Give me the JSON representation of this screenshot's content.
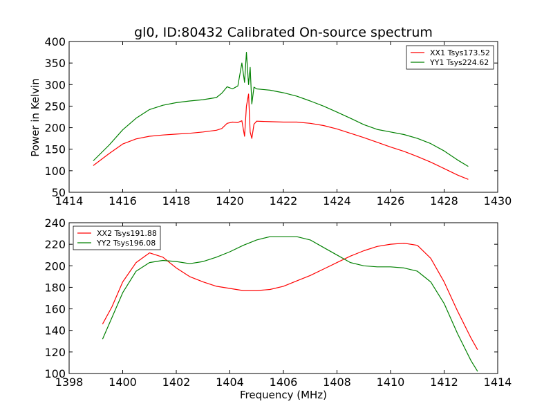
{
  "figure": {
    "title": "gl0, ID:80432 Calibrated On-source spectrum",
    "ylabel_top": "Power in Kelvin",
    "xlabel_bottom": "Frequency (MHz)"
  },
  "chart_data": [
    {
      "type": "line",
      "title": "gl0, ID:80432 Calibrated On-source spectrum",
      "xlabel": "",
      "ylabel": "Power in Kelvin",
      "xlim": [
        1414,
        1430
      ],
      "ylim": [
        50,
        400
      ],
      "xticks": [
        "1414",
        "1416",
        "1418",
        "1420",
        "1422",
        "1424",
        "1426",
        "1428",
        "1430"
      ],
      "yticks": [
        "50",
        "100",
        "150",
        "200",
        "250",
        "300",
        "350",
        "400"
      ],
      "grid": false,
      "legend_position": "upper right",
      "series": [
        {
          "name": "XX1 Tsys173.52",
          "color": "#ff0000",
          "x": [
            1414.9,
            1415.5,
            1416,
            1416.5,
            1417,
            1417.5,
            1418,
            1418.5,
            1419,
            1419.5,
            1419.7,
            1419.9,
            1420.1,
            1420.3,
            1420.45,
            1420.55,
            1420.62,
            1420.7,
            1420.76,
            1420.82,
            1420.9,
            1421,
            1421.5,
            1422,
            1422.5,
            1423,
            1423.5,
            1424,
            1424.5,
            1425,
            1425.5,
            1426,
            1426.5,
            1427,
            1427.5,
            1428,
            1428.5,
            1428.9
          ],
          "y": [
            112,
            140,
            162,
            174,
            180,
            183,
            185,
            187,
            190,
            194,
            198,
            210,
            213,
            212,
            216,
            180,
            250,
            278,
            190,
            175,
            208,
            215,
            214,
            213,
            213,
            210,
            205,
            197,
            187,
            177,
            166,
            155,
            145,
            133,
            120,
            105,
            90,
            80
          ]
        },
        {
          "name": "YY1 Tsys224.62",
          "color": "#008000",
          "x": [
            1414.9,
            1415.5,
            1416,
            1416.5,
            1417,
            1417.5,
            1418,
            1418.5,
            1419,
            1419.5,
            1419.7,
            1419.9,
            1420.1,
            1420.3,
            1420.45,
            1420.55,
            1420.62,
            1420.7,
            1420.76,
            1420.82,
            1420.9,
            1421,
            1421.5,
            1422,
            1422.5,
            1423,
            1423.5,
            1424,
            1424.5,
            1425,
            1425.5,
            1426,
            1426.5,
            1427,
            1427.5,
            1428,
            1428.5,
            1428.9
          ],
          "y": [
            123,
            160,
            195,
            222,
            242,
            252,
            258,
            262,
            265,
            270,
            280,
            295,
            290,
            297,
            350,
            305,
            375,
            300,
            340,
            255,
            294,
            290,
            287,
            281,
            273,
            262,
            250,
            236,
            222,
            207,
            196,
            190,
            184,
            175,
            163,
            146,
            125,
            110
          ]
        }
      ]
    },
    {
      "type": "line",
      "title": "",
      "xlabel": "Frequency (MHz)",
      "ylabel": "",
      "xlim": [
        1398,
        1414
      ],
      "ylim": [
        100,
        240
      ],
      "xticks": [
        "1398",
        "1400",
        "1402",
        "1404",
        "1406",
        "1408",
        "1410",
        "1412",
        "1414"
      ],
      "yticks": [
        "100",
        "120",
        "140",
        "160",
        "180",
        "200",
        "220",
        "240"
      ],
      "grid": false,
      "legend_position": "upper left",
      "series": [
        {
          "name": "XX2 Tsys191.88",
          "color": "#ff0000",
          "x": [
            1399.25,
            1399.6,
            1400,
            1400.5,
            1401,
            1401.5,
            1402,
            1402.5,
            1403,
            1403.5,
            1404,
            1404.5,
            1405,
            1405.5,
            1406,
            1406.5,
            1407,
            1407.5,
            1408,
            1408.5,
            1409,
            1409.5,
            1410,
            1410.5,
            1411,
            1411.5,
            1412,
            1412.5,
            1413,
            1413.25
          ],
          "y": [
            146,
            162,
            185,
            203,
            212,
            208,
            198,
            190,
            185,
            181,
            179,
            177,
            177,
            178,
            181,
            186,
            191,
            197,
            203,
            209,
            214,
            218,
            220,
            221,
            219,
            207,
            185,
            158,
            133,
            122
          ]
        },
        {
          "name": "YY2 Tsys196.08",
          "color": "#008000",
          "x": [
            1399.25,
            1399.6,
            1400,
            1400.5,
            1401,
            1401.5,
            1402,
            1402.5,
            1403,
            1403.5,
            1404,
            1404.5,
            1405,
            1405.5,
            1406,
            1406.5,
            1407,
            1407.5,
            1408,
            1408.5,
            1409,
            1409.5,
            1410,
            1410.5,
            1411,
            1411.5,
            1412,
            1412.5,
            1413,
            1413.25
          ],
          "y": [
            132,
            152,
            175,
            195,
            203,
            205,
            204,
            202,
            204,
            208,
            213,
            219,
            224,
            227,
            227,
            227,
            224,
            217,
            210,
            203,
            200,
            199,
            199,
            198,
            195,
            185,
            165,
            137,
            112,
            102
          ]
        }
      ]
    }
  ]
}
